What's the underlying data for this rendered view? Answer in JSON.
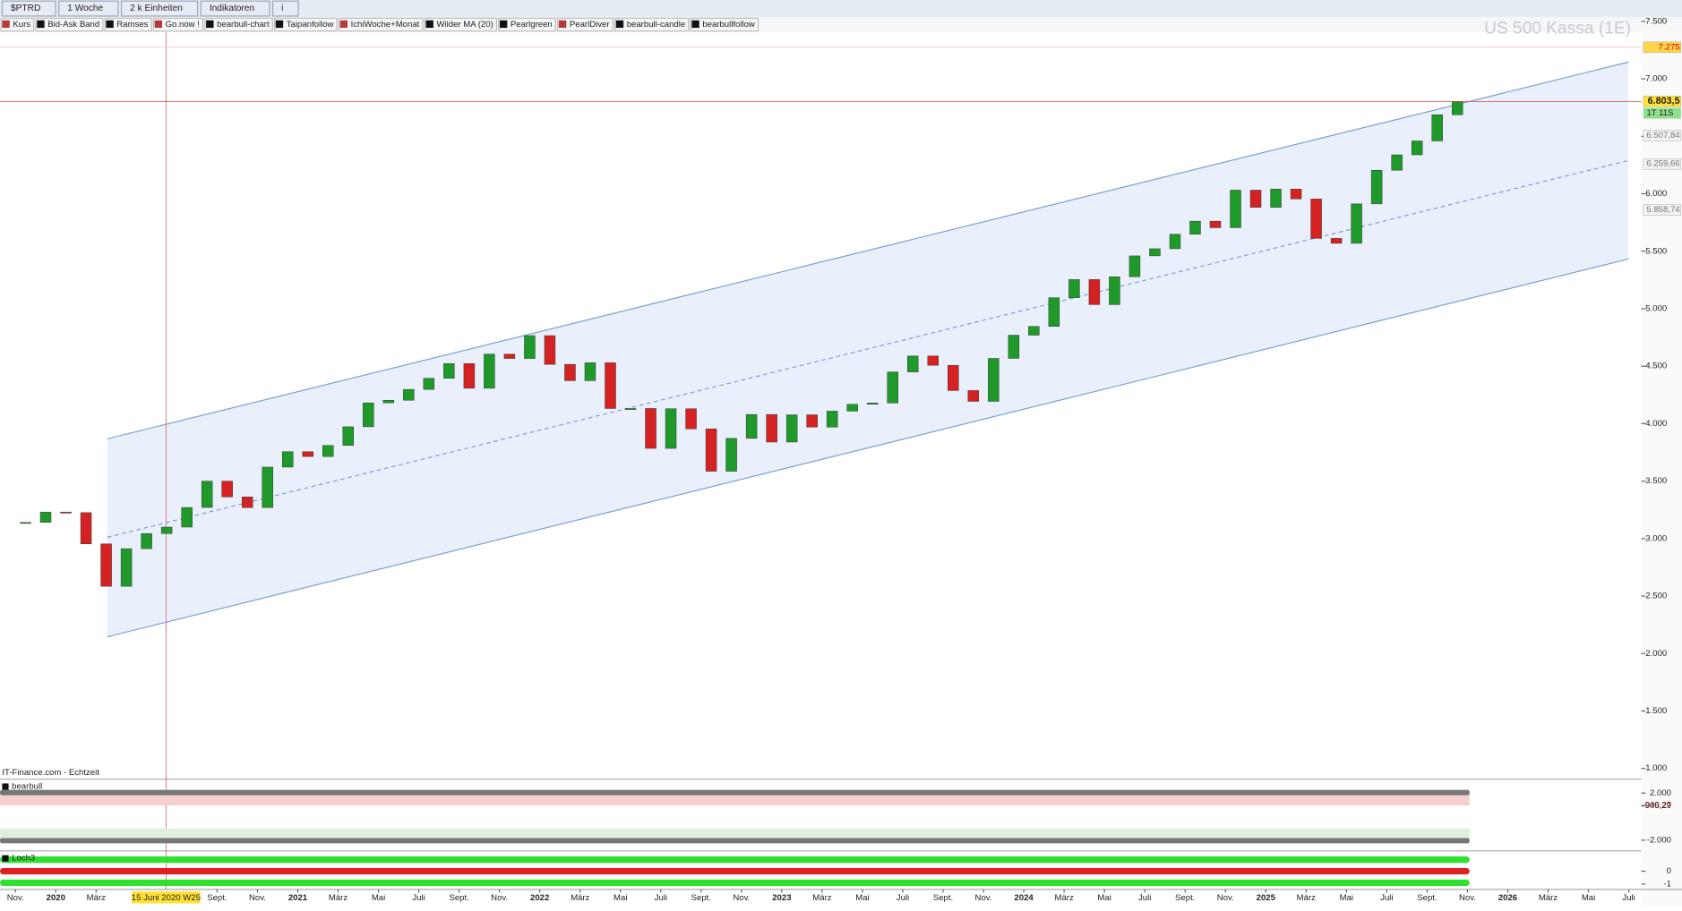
{
  "toolbar": {
    "symbol": "$PTRD",
    "interval": "1 Woche",
    "units": "2 k Einheiten",
    "indicators": "Indikatoren",
    "info": "i"
  },
  "legend": [
    "Kurs",
    "Bid-Ask Band",
    "Ramses",
    "Go.now !",
    "bearbull-chart",
    "Taipanfollow",
    "IchiWoche+Monat",
    "Wilder MA (20)",
    "Pearlgreen",
    "PearlDiver",
    "bearbull-candle",
    "bearbullfollow"
  ],
  "watermark": "US 500 Kassa (1E)",
  "source": "IT-Finance.com - Echtzeit",
  "chart_data": {
    "type": "candlestick",
    "x": [
      "2019-11",
      "2019-12",
      "2020-01",
      "2020-02",
      "2020-03",
      "2020-04",
      "2020-05",
      "2020-06",
      "2020-07",
      "2020-08",
      "2020-09",
      "2020-10",
      "2020-11",
      "2020-12",
      "2021-01",
      "2021-02",
      "2021-03",
      "2021-04",
      "2021-05",
      "2021-06",
      "2021-07",
      "2021-08",
      "2021-09",
      "2021-10",
      "2021-11",
      "2021-12",
      "2022-01",
      "2022-02",
      "2022-03",
      "2022-04",
      "2022-05",
      "2022-06",
      "2022-07",
      "2022-08",
      "2022-09",
      "2022-10",
      "2022-11",
      "2022-12",
      "2023-01",
      "2023-02",
      "2023-03",
      "2023-04",
      "2023-05",
      "2023-06",
      "2023-07",
      "2023-08",
      "2023-09",
      "2023-10",
      "2023-11",
      "2023-12",
      "2024-01",
      "2024-02",
      "2024-03",
      "2024-04",
      "2024-05",
      "2024-06",
      "2024-07",
      "2024-08",
      "2024-09",
      "2024-10",
      "2024-11",
      "2024-12",
      "2025-01",
      "2025-02",
      "2025-03",
      "2025-04",
      "2025-05",
      "2025-06",
      "2025-07",
      "2025-08",
      "2025-09",
      "2025-10"
    ],
    "values": [
      3141,
      3231,
      3226,
      2954,
      2585,
      2912,
      3044,
      3100,
      3271,
      3500,
      3363,
      3270,
      3622,
      3756,
      3714,
      3811,
      3973,
      4181,
      4204,
      4298,
      4395,
      4523,
      4308,
      4605,
      4567,
      4766,
      4516,
      4374,
      4530,
      4132,
      4132,
      3785,
      4130,
      3955,
      3586,
      3872,
      4080,
      3840,
      4077,
      3970,
      4109,
      4169,
      4180,
      4450,
      4589,
      4508,
      4288,
      4194,
      4568,
      4770,
      4846,
      5096,
      5254,
      5036,
      5278,
      5460,
      5522,
      5648,
      5762,
      5705,
      6032,
      5882,
      6041,
      5955,
      5612,
      5569,
      5912,
      6205,
      6339,
      6460,
      6688,
      6804
    ],
    "up_color": "#1f9a2a",
    "down_color": "#d42222",
    "ylim": [
      1000,
      7500
    ],
    "yticks": [
      {
        "value": 7500,
        "label": "7.500"
      },
      {
        "value": 7000,
        "label": "7.000"
      },
      {
        "value": 6500,
        "label": "6.500"
      },
      {
        "value": 6000,
        "label": "6.000"
      },
      {
        "value": 5500,
        "label": "5.500"
      },
      {
        "value": 5000,
        "label": "5.000"
      },
      {
        "value": 4500,
        "label": "4.500"
      },
      {
        "value": 4000,
        "label": "4.000"
      },
      {
        "value": 3500,
        "label": "3.500"
      },
      {
        "value": 3000,
        "label": "3.000"
      },
      {
        "value": 2500,
        "label": "2.500"
      },
      {
        "value": 2000,
        "label": "2.000"
      },
      {
        "value": 1500,
        "label": "1.500"
      },
      {
        "value": 1000,
        "label": "1.000"
      }
    ],
    "xticks": [
      {
        "value": "2019-11",
        "label": "Nov."
      },
      {
        "value": "2020-01",
        "label": "2020"
      },
      {
        "value": "2020-03",
        "label": "März"
      },
      {
        "value": "2020-09",
        "label": "Sept."
      },
      {
        "value": "2020-11",
        "label": "Nov."
      },
      {
        "value": "2021-01",
        "label": "2021"
      },
      {
        "value": "2021-03",
        "label": "März"
      },
      {
        "value": "2021-05",
        "label": "Mai"
      },
      {
        "value": "2021-07",
        "label": "Juli"
      },
      {
        "value": "2021-09",
        "label": "Sept."
      },
      {
        "value": "2021-11",
        "label": "Nov."
      },
      {
        "value": "2022-01",
        "label": "2022"
      },
      {
        "value": "2022-03",
        "label": "März"
      },
      {
        "value": "2022-05",
        "label": "Mai"
      },
      {
        "value": "2022-07",
        "label": "Juli"
      },
      {
        "value": "2022-09",
        "label": "Sept."
      },
      {
        "value": "2022-11",
        "label": "Nov."
      },
      {
        "value": "2023-01",
        "label": "2023"
      },
      {
        "value": "2023-03",
        "label": "März"
      },
      {
        "value": "2023-05",
        "label": "Mai"
      },
      {
        "value": "2023-07",
        "label": "Juli"
      },
      {
        "value": "2023-09",
        "label": "Sept."
      },
      {
        "value": "2023-11",
        "label": "Nov."
      },
      {
        "value": "2024-01",
        "label": "2024"
      },
      {
        "value": "2024-03",
        "label": "März"
      },
      {
        "value": "2024-05",
        "label": "Mai"
      },
      {
        "value": "2024-07",
        "label": "Juli"
      },
      {
        "value": "2024-09",
        "label": "Sept."
      },
      {
        "value": "2024-11",
        "label": "Nov."
      },
      {
        "value": "2025-01",
        "label": "2025"
      },
      {
        "value": "2025-03",
        "label": "März"
      },
      {
        "value": "2025-05",
        "label": "Mai"
      },
      {
        "value": "2025-07",
        "label": "Juli"
      },
      {
        "value": "2025-09",
        "label": "Sept."
      },
      {
        "value": "2025-11",
        "label": "Nov."
      },
      {
        "value": "2026-01",
        "label": "2026"
      },
      {
        "value": "2026-03",
        "label": "März"
      },
      {
        "value": "2026-05",
        "label": "Mai"
      },
      {
        "value": "2026-07",
        "label": "Juli"
      }
    ],
    "cursor": {
      "x": "2020-06-15",
      "label": "15 Juni 2020 W25"
    },
    "price_labels": [
      {
        "value": 7275,
        "label": "7.275",
        "color": "#ffd54a"
      },
      {
        "value": 6803.5,
        "label": "6.803,5",
        "color": "#ffe033"
      },
      {
        "value": 6507.84,
        "label": "6.507,84",
        "color": "#f2f2f2"
      },
      {
        "value": 6259.66,
        "label": "6.259,66",
        "color": "#f2f2f2"
      },
      {
        "value": 5858.74,
        "label": "5.858,74",
        "color": "#f2f2f2"
      }
    ],
    "countdown": "1T 11S"
  },
  "panels": [
    {
      "name": "bearbull",
      "ylim": [
        -2500,
        2500
      ],
      "ticks": [
        {
          "value": 2000,
          "label": "2.000"
        },
        {
          "value": 940.27,
          "label": "940,27"
        },
        {
          "value": 905.29,
          "label": "905,29"
        },
        {
          "value": -2000,
          "label": "-2.000"
        }
      ]
    },
    {
      "name": "Loch3",
      "ylim": [
        -1.5,
        1.5
      ],
      "ticks": [
        0,
        -1
      ]
    }
  ]
}
